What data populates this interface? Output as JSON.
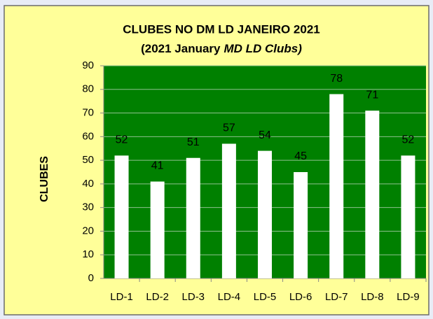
{
  "chart_data": {
    "type": "bar",
    "title": "CLUBES NO DM LD JANEIRO 2021",
    "subtitle": [
      "(2021 January",
      "MD LD Clubs)"
    ],
    "y_label": "CLUBES",
    "categories": [
      "LD-1",
      "LD-2",
      "LD-3",
      "LD-4",
      "LD-5",
      "LD-6",
      "LD-7",
      "LD-8",
      "LD-9"
    ],
    "values": [
      52,
      41,
      51,
      57,
      54,
      45,
      78,
      71,
      52
    ],
    "color": "#ffffff",
    "plot_color": "#008000",
    "ylim": [
      0,
      90
    ],
    "yticks": [
      0,
      10,
      20,
      30,
      40,
      50,
      60,
      70,
      80,
      90
    ],
    "grid": true
  }
}
